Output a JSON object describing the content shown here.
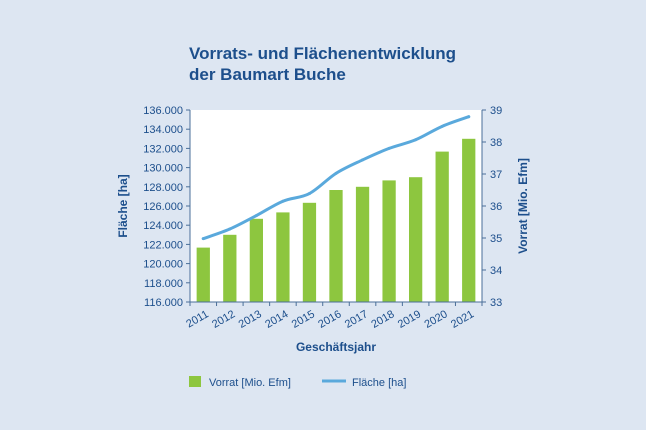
{
  "chart_data": {
    "type": "bar",
    "title_lines": [
      "Vorrats- und Flächenentwicklung",
      "der Baumart Buche"
    ],
    "xlabel": "Geschäftsjahr",
    "ylabel_left": "Fläche [ha]",
    "ylabel_right": "Vorrat [Mio. Efm]",
    "categories": [
      "2011",
      "2012",
      "2013",
      "2014",
      "2015",
      "2016",
      "2017",
      "2018",
      "2019",
      "2020",
      "2021"
    ],
    "left_axis": {
      "ylim": [
        116000,
        136000
      ],
      "ticks": [
        116000,
        118000,
        120000,
        122000,
        124000,
        126000,
        128000,
        130000,
        132000,
        134000,
        136000
      ],
      "tick_labels": [
        "116.000",
        "118.000",
        "120.000",
        "122.000",
        "124.000",
        "126.000",
        "128.000",
        "130.000",
        "132.000",
        "134.000",
        "136.000"
      ]
    },
    "right_axis": {
      "ylim": [
        33,
        39
      ],
      "ticks": [
        33,
        34,
        35,
        36,
        37,
        38,
        39
      ],
      "tick_labels": [
        "33",
        "34",
        "35",
        "36",
        "37",
        "38",
        "39"
      ]
    },
    "series": [
      {
        "name": "Vorrat [Mio. Efm]",
        "type": "bar",
        "axis": "right",
        "color": "#8dc63f",
        "values": [
          34.7,
          35.1,
          35.6,
          35.8,
          36.1,
          36.5,
          36.6,
          36.8,
          36.9,
          37.7,
          38.1
        ]
      },
      {
        "name": "Fläche [ha]",
        "type": "line",
        "axis": "left",
        "color": "#5aa9dc",
        "values": [
          122600,
          123600,
          125000,
          126500,
          127300,
          129400,
          130800,
          132000,
          132900,
          134300,
          135300
        ]
      }
    ],
    "grid": false,
    "legend_position": "bottom"
  },
  "colors": {
    "background": "#dde6f2",
    "plot_background": "#ffffff",
    "axis_text": "#1d4f8c",
    "axis_line": "#4a6f99"
  }
}
